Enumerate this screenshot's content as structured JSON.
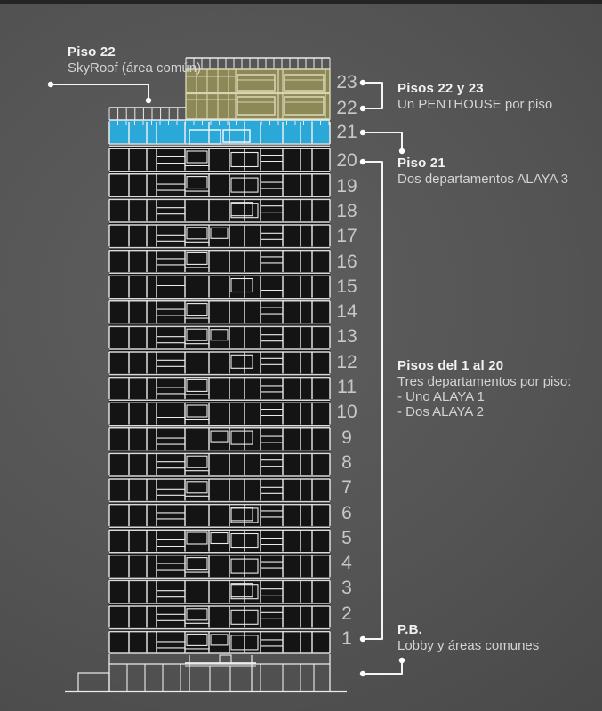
{
  "callouts": {
    "skyroof": {
      "title": "Piso 22",
      "body": "SkyRoof (área común)"
    },
    "penthouse": {
      "title": "Pisos 22 y 23",
      "body": "Un PENTHOUSE por piso"
    },
    "floor21": {
      "title": "Piso 21",
      "body": "Dos departamentos ALAYA 3"
    },
    "floors_1_20": {
      "title": "Pisos del 1 al 20",
      "body": "Tres departamentos por piso:",
      "items": [
        "- Uno ALAYA 1",
        "- Dos ALAYA 2"
      ]
    },
    "ground": {
      "title": "P.B.",
      "body": "Lobby y áreas comunes"
    }
  },
  "floor_numbers": [
    23,
    22,
    21,
    20,
    19,
    18,
    17,
    16,
    15,
    14,
    13,
    12,
    11,
    10,
    9,
    8,
    7,
    6,
    5,
    4,
    3,
    2,
    1
  ],
  "colors": {
    "background": "#545454",
    "facade_dark": "#141414",
    "floor21_blue": "#2aa8d8",
    "penthouse_olive": "#8d8857",
    "olive_line": "#d8d4ae",
    "line_light": "#ececec",
    "slab_line": "#d9d9d9",
    "leader_line": "#f5f5f5",
    "floor_number_text": "#c8c8c8",
    "title_text": "#f2f2f2",
    "body_text": "#d4d4d4"
  }
}
